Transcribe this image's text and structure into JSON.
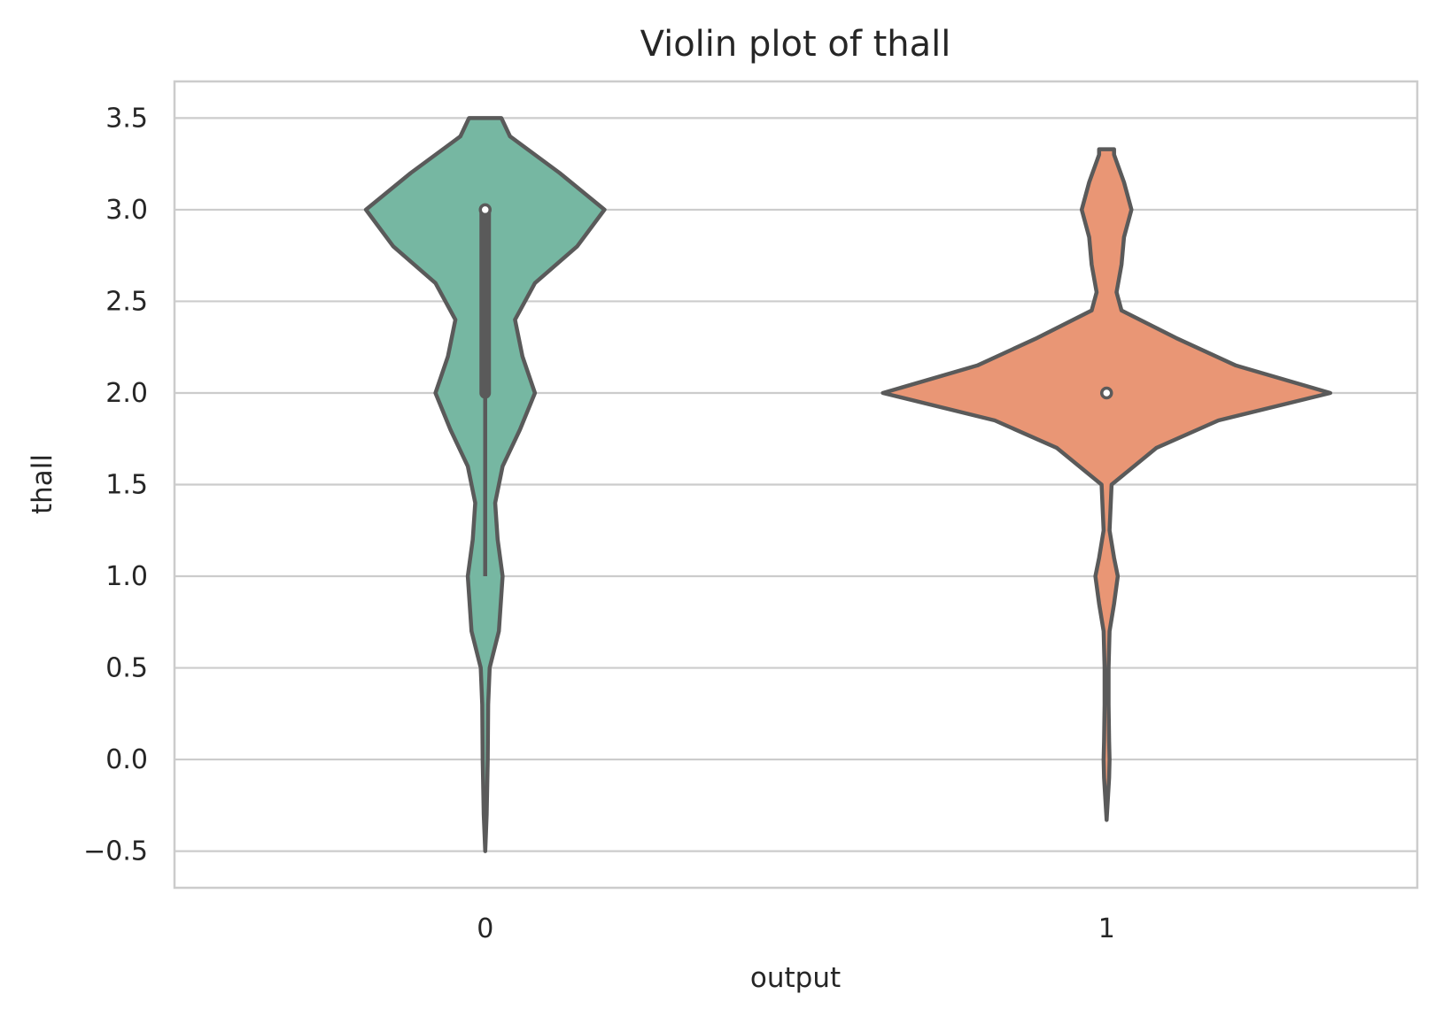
{
  "chart_data": {
    "type": "violin",
    "title": "Violin plot of thall",
    "xlabel": "output",
    "ylabel": "thall",
    "categories": [
      "0",
      "1"
    ],
    "ylim": [
      -0.7,
      3.7
    ],
    "yticks": [
      -0.5,
      0.0,
      0.5,
      1.0,
      1.5,
      2.0,
      2.5,
      3.0,
      3.5
    ],
    "ytick_labels": [
      "−0.5",
      "0.0",
      "0.5",
      "1.0",
      "1.5",
      "2.0",
      "2.5",
      "3.0",
      "3.5"
    ],
    "grid": "horizontal",
    "colors": {
      "0": "#76b7a2",
      "1": "#e99675",
      "outline": "#5a5a5a",
      "grid": "#cccccc"
    },
    "violins": [
      {
        "category": "0",
        "density_y": [
          -0.5,
          -0.3,
          0.0,
          0.3,
          0.5,
          0.7,
          1.0,
          1.2,
          1.4,
          1.6,
          1.8,
          2.0,
          2.2,
          2.4,
          2.6,
          2.8,
          3.0,
          3.2,
          3.4,
          3.5
        ],
        "half_width": [
          0.0,
          0.006,
          0.01,
          0.012,
          0.018,
          0.055,
          0.07,
          0.05,
          0.04,
          0.07,
          0.14,
          0.2,
          0.15,
          0.12,
          0.2,
          0.37,
          0.48,
          0.3,
          0.1,
          0.065
        ],
        "quartiles": [
          2.0,
          3.0
        ],
        "whiskers": [
          1.0,
          3.0
        ],
        "median": 3.0
      },
      {
        "category": "1",
        "density_y": [
          -0.33,
          -0.1,
          0.0,
          0.1,
          0.3,
          0.5,
          0.7,
          0.85,
          1.0,
          1.1,
          1.25,
          1.5,
          1.7,
          1.85,
          2.0,
          2.15,
          2.3,
          2.45,
          2.55,
          2.7,
          2.85,
          3.0,
          3.15,
          3.3,
          3.33
        ],
        "half_width": [
          0.0,
          0.01,
          0.012,
          0.01,
          0.008,
          0.008,
          0.012,
          0.03,
          0.045,
          0.03,
          0.012,
          0.02,
          0.2,
          0.45,
          0.9,
          0.52,
          0.28,
          0.06,
          0.04,
          0.06,
          0.07,
          0.1,
          0.07,
          0.03,
          0.03
        ],
        "quartiles": [
          2.0,
          2.0
        ],
        "whiskers": [
          2.0,
          2.0
        ],
        "median": 2.0
      }
    ]
  }
}
